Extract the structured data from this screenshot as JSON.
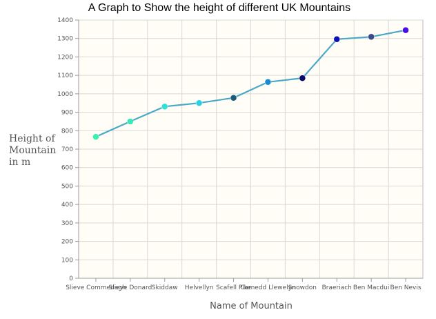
{
  "chart_data": {
    "type": "line",
    "title": "A Graph to Show the height of different UK Mountains",
    "xlabel": "Name of Mountain",
    "ylabel_lines": [
      "Height of",
      "Mountain",
      "in m"
    ],
    "categories": [
      "Slieve Commedagh",
      "Slieve Donard",
      "Skiddaw",
      "Helvellyn",
      "Scafell Pike",
      "Carnedd Llewelyn",
      "Snowdon",
      "Braeriach",
      "Ben Macdui",
      "Ben Nevis"
    ],
    "series": [
      {
        "values": [
          767,
          850,
          931,
          950,
          978,
          1064,
          1085,
          1296,
          1309,
          1345
        ]
      }
    ],
    "point_colors": [
      "#3ef0b0",
      "#35e8b8",
      "#2ee0d8",
      "#2ad0e8",
      "#1a5a7a",
      "#1a8ad0",
      "#0a0a6a",
      "#1010b0",
      "#3a4a8a",
      "#4a10e0"
    ],
    "line_color": "#4aa8c8",
    "plot_background": "#fffdf6",
    "ylim": [
      0,
      1400
    ],
    "yticks": [
      0,
      100,
      200,
      300,
      400,
      500,
      600,
      700,
      800,
      900,
      1000,
      1100,
      1200,
      1300,
      1400
    ],
    "grid": true
  }
}
